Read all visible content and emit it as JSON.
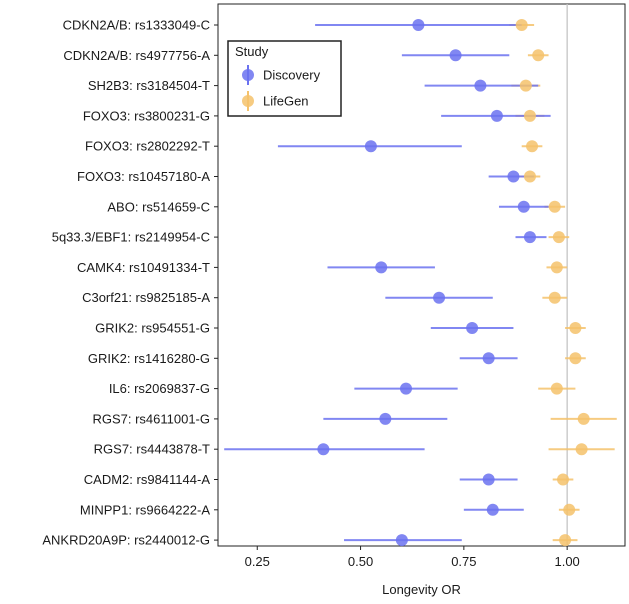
{
  "chart_data": {
    "type": "scatter",
    "subtype": "forest-plot",
    "xlabel": "Longevity OR",
    "xlim": [
      0.155,
      1.14
    ],
    "x_ticks": [
      0.25,
      0.5,
      0.75,
      1.0
    ],
    "x_tick_labels": [
      "0.25",
      "0.50",
      "0.75",
      "1.00"
    ],
    "reference_line_x": 1.0,
    "grid": false,
    "legend": {
      "title": "Study",
      "placement": "top-left",
      "entries": [
        "Discovery",
        "LifeGen"
      ]
    },
    "categories": [
      "CDKN2A/B: rs1333049-C",
      "CDKN2A/B: rs4977756-A",
      "SH2B3: rs3184504-T",
      "FOXO3: rs3800231-G",
      "FOXO3: rs2802292-T",
      "FOXO3: rs10457180-A",
      "ABO: rs514659-C",
      "5q33.3/EBF1: rs2149954-C",
      "CAMK4: rs10491334-T",
      "C3orf21: rs9825185-A",
      "GRIK2: rs954551-G",
      "GRIK2: rs1416280-G",
      "IL6: rs2069837-G",
      "RGS7: rs4611001-G",
      "RGS7: rs4443878-T",
      "CADM2: rs9841144-A",
      "MINPP1: rs9664222-A",
      "ANKRD20A9P: rs2440012-G"
    ],
    "series": [
      {
        "name": "Discovery",
        "color": "#6b72f0",
        "or": [
          0.64,
          0.73,
          0.79,
          0.83,
          0.525,
          0.87,
          0.895,
          0.91,
          0.55,
          0.69,
          0.77,
          0.81,
          0.61,
          0.56,
          0.41,
          0.81,
          0.82,
          0.6
        ],
        "lower": [
          0.39,
          0.6,
          0.655,
          0.695,
          0.3,
          0.81,
          0.835,
          0.875,
          0.42,
          0.56,
          0.67,
          0.74,
          0.485,
          0.41,
          0.17,
          0.74,
          0.75,
          0.46
        ],
        "upper": [
          0.89,
          0.86,
          0.93,
          0.96,
          0.745,
          0.92,
          0.955,
          0.95,
          0.68,
          0.82,
          0.87,
          0.88,
          0.735,
          0.71,
          0.655,
          0.88,
          0.895,
          0.745
        ]
      },
      {
        "name": "LifeGen",
        "color": "#f5c26b",
        "or": [
          0.89,
          0.93,
          0.9,
          0.91,
          0.915,
          0.91,
          0.97,
          0.98,
          0.975,
          0.97,
          1.02,
          1.02,
          0.975,
          1.04,
          1.035,
          0.99,
          1.005,
          0.995
        ],
        "lower": [
          0.86,
          0.905,
          0.865,
          0.875,
          0.89,
          0.88,
          0.945,
          0.955,
          0.95,
          0.94,
          0.995,
          0.995,
          0.93,
          0.96,
          0.955,
          0.965,
          0.98,
          0.965
        ],
        "upper": [
          0.92,
          0.955,
          0.935,
          0.945,
          0.94,
          0.935,
          0.995,
          1.005,
          1.0,
          1.0,
          1.045,
          1.045,
          1.02,
          1.12,
          1.115,
          1.015,
          1.03,
          1.025
        ]
      }
    ]
  }
}
